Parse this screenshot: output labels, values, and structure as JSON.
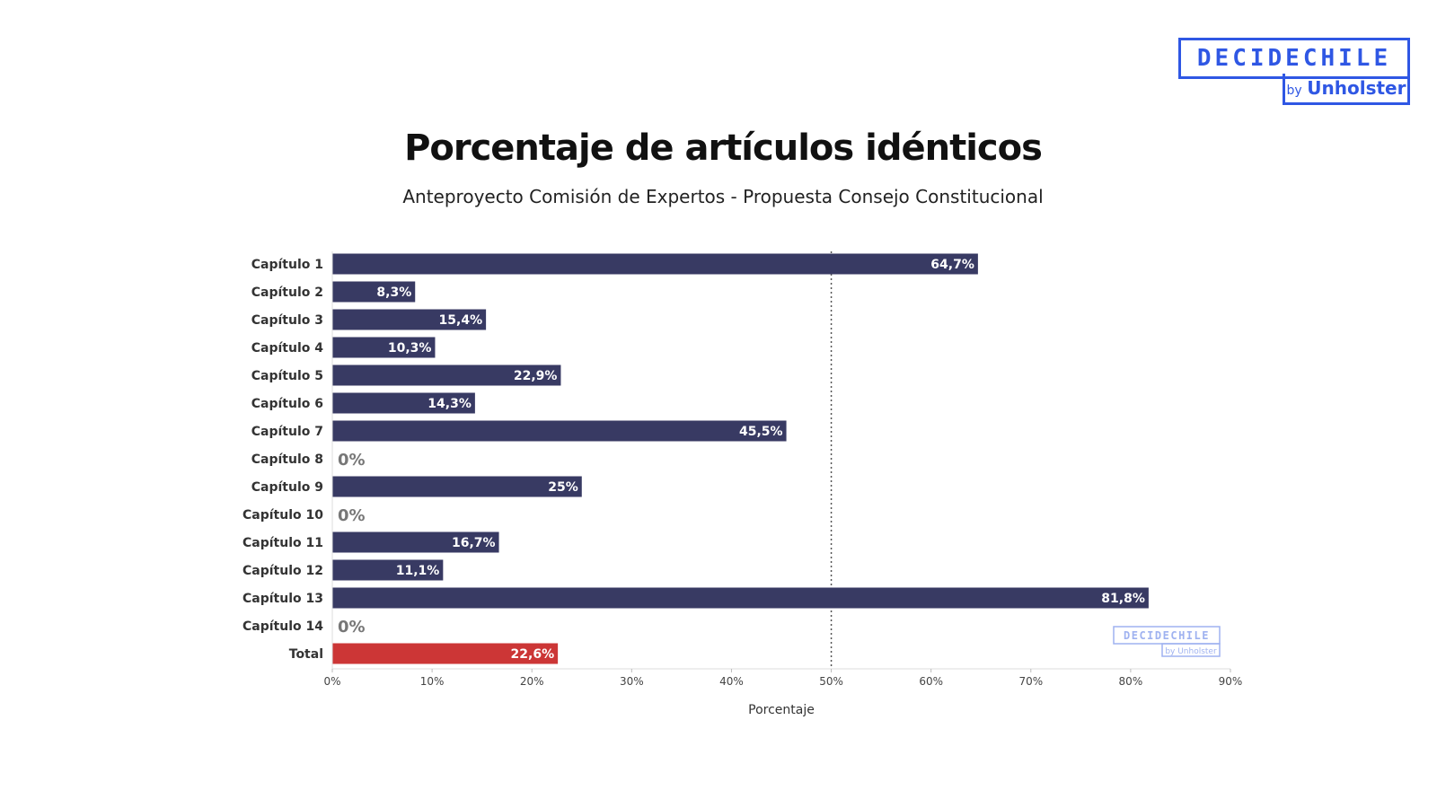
{
  "logo": {
    "name": "DECIDECHILE",
    "by": "by",
    "brand": "Unholster"
  },
  "watermark": {
    "name": "DECIDECHILE",
    "by": "by",
    "brand": "Unholster"
  },
  "chart_data": {
    "type": "bar",
    "orientation": "horizontal",
    "title": "Porcentaje de artículos idénticos",
    "subtitle": "Anteproyecto Comisión de Expertos - Propuesta Consejo Constitucional",
    "xlabel": "Porcentaje",
    "ylabel": "",
    "xlim": [
      0,
      90
    ],
    "xticks": [
      0,
      10,
      20,
      30,
      40,
      50,
      60,
      70,
      80,
      90
    ],
    "xtick_labels": [
      "0%",
      "10%",
      "20%",
      "30%",
      "40%",
      "50%",
      "60%",
      "70%",
      "80%",
      "90%"
    ],
    "reference_line": 50,
    "categories": [
      "Capítulo 1",
      "Capítulo 2",
      "Capítulo 3",
      "Capítulo 4",
      "Capítulo 5",
      "Capítulo 6",
      "Capítulo 7",
      "Capítulo 8",
      "Capítulo 9",
      "Capítulo 10",
      "Capítulo 11",
      "Capítulo 12",
      "Capítulo 13",
      "Capítulo 14",
      "Total"
    ],
    "values": [
      64.7,
      8.3,
      15.4,
      10.3,
      22.9,
      14.3,
      45.5,
      0,
      25,
      0,
      16.7,
      11.1,
      81.8,
      0,
      22.6
    ],
    "labels": [
      "64,7%",
      "8,3%",
      "15,4%",
      "10,3%",
      "22,9%",
      "14,3%",
      "45,5%",
      "0%",
      "25%",
      "0%",
      "16,7%",
      "11,1%",
      "81,8%",
      "0%",
      "22,6%"
    ],
    "colors": {
      "bar": "#383a63",
      "total": "#cc3636",
      "zero_label": "#777777",
      "inside_label": "#ffffff"
    }
  }
}
